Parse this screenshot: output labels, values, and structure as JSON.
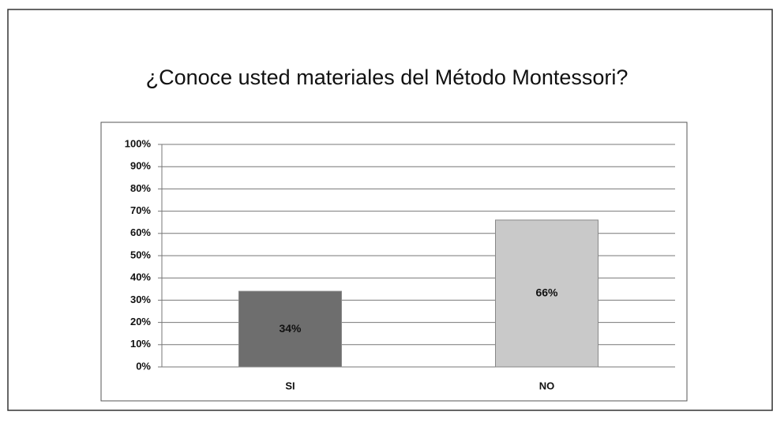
{
  "chart_data": {
    "type": "bar",
    "title": "¿Conoce usted materiales del Método Montessori?",
    "categories": [
      "SI",
      "NO"
    ],
    "values": [
      34,
      66
    ],
    "value_labels": [
      "34%",
      "66%"
    ],
    "colors": [
      "#6e6e6e",
      "#c9c9c9"
    ],
    "ylim": [
      0,
      100
    ],
    "yticks": [
      {
        "value": 0,
        "label": "0%"
      },
      {
        "value": 10,
        "label": "10%"
      },
      {
        "value": 20,
        "label": "20%"
      },
      {
        "value": 30,
        "label": "30%"
      },
      {
        "value": 40,
        "label": "40%"
      },
      {
        "value": 50,
        "label": "50%"
      },
      {
        "value": 60,
        "label": "60%"
      },
      {
        "value": 70,
        "label": "70%"
      },
      {
        "value": 80,
        "label": "80%"
      },
      {
        "value": 90,
        "label": "90%"
      },
      {
        "value": 100,
        "label": "100%"
      }
    ],
    "grid": true
  }
}
